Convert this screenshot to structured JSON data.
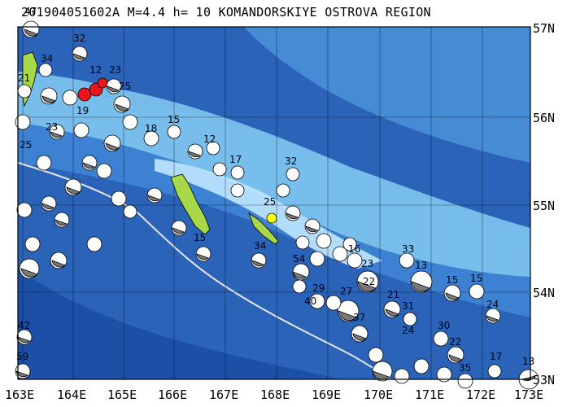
{
  "title": "201904051602A  M=4.4  h= 10 KOMANDORSKIYE OSTROVA REGION",
  "lat_labels": [
    "57N",
    "56N",
    "55N",
    "54N",
    "53N"
  ],
  "lon_labels": [
    "163E",
    "164E",
    "165E",
    "166E",
    "167E",
    "168E",
    "169E",
    "170E",
    "171E",
    "172E",
    "173E"
  ],
  "colors": {
    "land": "#a8d84a",
    "deep": "#1f5fb8",
    "shelf": "#bfe6ff",
    "event": "#e8161c",
    "marker": "#ffff00"
  },
  "event_labels": [
    "47",
    "34",
    "32",
    "23",
    "12",
    "25",
    "21",
    "19",
    "23",
    "18",
    "15",
    "12",
    "17",
    "32",
    "25",
    "34",
    "54",
    "15",
    "16",
    "23",
    "33",
    "13",
    "15",
    "15",
    "24",
    "22",
    "21",
    "31",
    "30",
    "27",
    "37",
    "29",
    "40",
    "22",
    "17",
    "13",
    "42",
    "59",
    "35",
    "24",
    "25"
  ]
}
